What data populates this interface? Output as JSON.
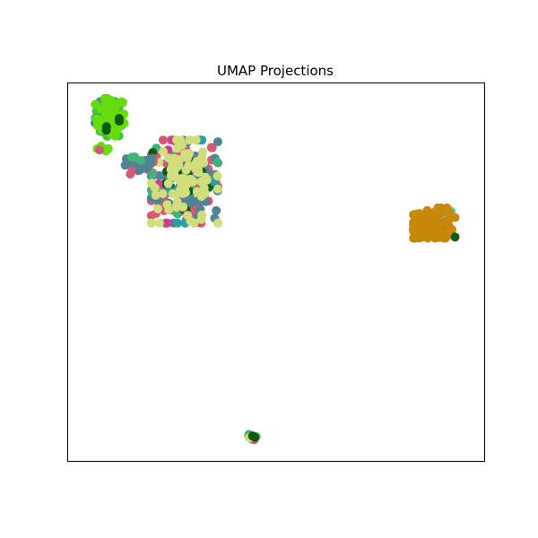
{
  "chart_data": {
    "type": "scatter",
    "title": "UMAP Projections",
    "xlabel": "",
    "ylabel": "",
    "xlim": [
      0,
      100
    ],
    "ylim": [
      0,
      100
    ],
    "axis_ticks": false,
    "grid": false,
    "legend": "none",
    "clusters": [
      {
        "label": "top-left",
        "center": [
          10,
          91
        ],
        "spread": [
          3.5,
          5
        ],
        "points": [
          {
            "color": "#2a52d8",
            "count": 14
          },
          {
            "color": "#3ec23e",
            "count": 22
          },
          {
            "color": "#4a8fa0",
            "count": 6
          },
          {
            "color": "#66dd0e",
            "count": 40
          },
          {
            "color": "#0e5a0e",
            "count": 4
          }
        ]
      },
      {
        "label": "top-left-tail",
        "center": [
          8,
          82
        ],
        "spread": [
          2,
          1.5
        ],
        "points": [
          {
            "color": "#66dd0e",
            "count": 6
          },
          {
            "color": "#d65a74",
            "count": 1
          }
        ]
      },
      {
        "label": "central",
        "center": [
          28,
          74
        ],
        "spread": [
          8,
          11
        ],
        "points": [
          {
            "color": "#d65a74",
            "count": 90
          },
          {
            "color": "#4f8396",
            "count": 70
          },
          {
            "color": "#3fb37a",
            "count": 14
          },
          {
            "color": "#0e5a0e",
            "count": 14
          },
          {
            "color": "#2aa0a0",
            "count": 8
          },
          {
            "color": "#cf3a94",
            "count": 8
          },
          {
            "color": "#d2dd7c",
            "count": 85
          }
        ]
      },
      {
        "label": "central-arm",
        "center": [
          17,
          78
        ],
        "spread": [
          4,
          2.5
        ],
        "points": [
          {
            "color": "#d65a74",
            "count": 20
          },
          {
            "color": "#4f8396",
            "count": 12
          },
          {
            "color": "#3fb37a",
            "count": 4
          }
        ]
      },
      {
        "label": "right",
        "center": [
          88,
          63
        ],
        "spread": [
          5,
          4
        ],
        "points": [
          {
            "color": "#2a52d8",
            "count": 10
          },
          {
            "color": "#4fd8c8",
            "count": 8
          },
          {
            "color": "#c8890a",
            "count": 95
          },
          {
            "color": "#0e5a0e",
            "count": 1
          }
        ]
      },
      {
        "label": "bottom",
        "center": [
          44,
          6
        ],
        "spread": [
          1.2,
          1
        ],
        "points": [
          {
            "color": "#d65a74",
            "count": 4
          },
          {
            "color": "#3fb37a",
            "count": 3
          },
          {
            "color": "#d2dd7c",
            "count": 2
          },
          {
            "color": "#0e5a0e",
            "count": 2
          }
        ]
      }
    ]
  }
}
